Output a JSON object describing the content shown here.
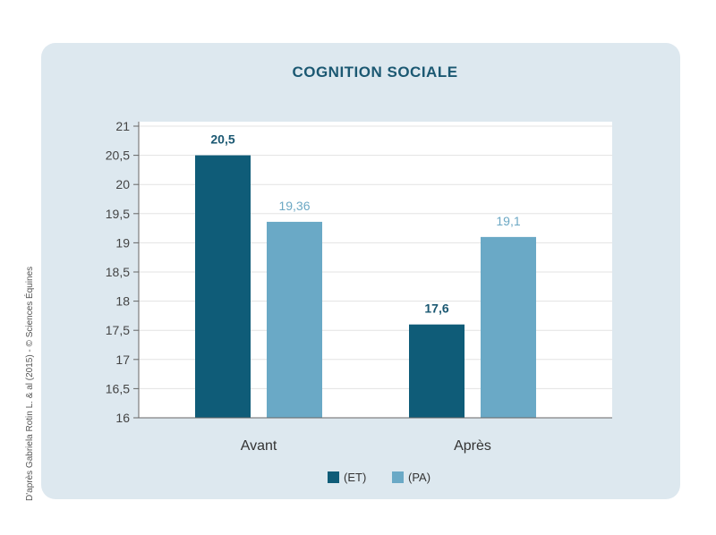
{
  "credit": "D'après Gabriela Rotin L. & al (2015) - © Sciences Équines",
  "chart_data": {
    "type": "bar",
    "title": "COGNITION SOCIALE",
    "categories": [
      "Avant",
      "Après"
    ],
    "series": [
      {
        "name": "(ET)",
        "values": [
          20.5,
          17.6
        ],
        "labels": [
          "20,5",
          "17,6"
        ],
        "color": "#0f5c78"
      },
      {
        "name": "(PA)",
        "values": [
          19.36,
          19.1
        ],
        "labels": [
          "19,36",
          "19,1"
        ],
        "color": "#6aa9c6"
      }
    ],
    "ylim": [
      16,
      21
    ],
    "yticks": [
      {
        "value": 21,
        "label": "21"
      },
      {
        "value": 20.5,
        "label": "20,5"
      },
      {
        "value": 20,
        "label": "20"
      },
      {
        "value": 19.5,
        "label": "19,5"
      },
      {
        "value": 19,
        "label": "19"
      },
      {
        "value": 18.5,
        "label": "18,5"
      },
      {
        "value": 18,
        "label": "18"
      },
      {
        "value": 17.5,
        "label": "17,5"
      },
      {
        "value": 17,
        "label": "17"
      },
      {
        "value": 16.5,
        "label": "16,5"
      },
      {
        "value": 16,
        "label": "16"
      }
    ],
    "grid": true,
    "legend": "bottom",
    "xlabel": "",
    "ylabel": ""
  }
}
